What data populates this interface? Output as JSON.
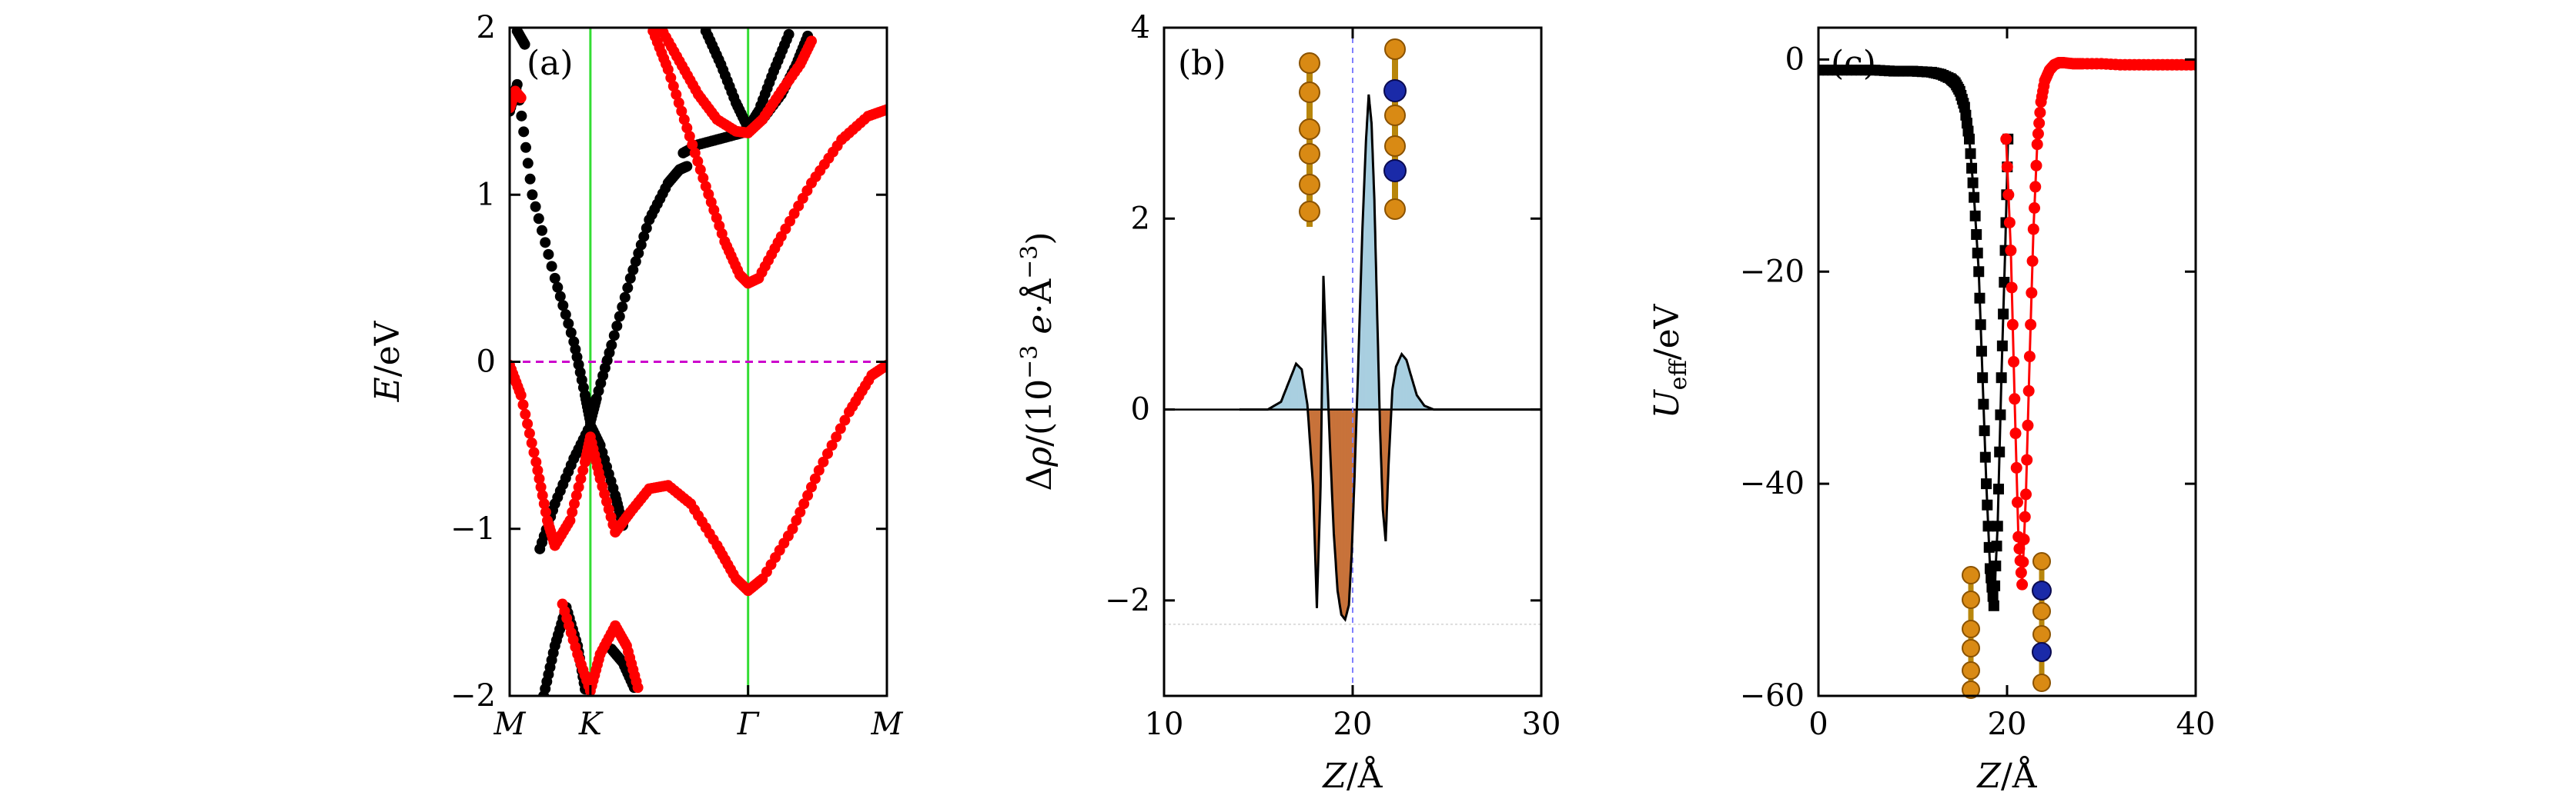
{
  "figure": "Three-panel band structure / charge difference / effective potential figure",
  "chart_data": [
    {
      "type": "scatter",
      "panel_label": "(a)",
      "xlabel": "",
      "ylabel": "E/eV",
      "ylabel_italic": "E",
      "ylabel_unit": "/eV",
      "xlim": [
        0,
        1
      ],
      "ylim": [
        -2,
        2
      ],
      "x_ticks": [
        {
          "pos": 0.0,
          "label": "M"
        },
        {
          "pos": 0.214,
          "label": "K"
        },
        {
          "pos": 0.632,
          "label": "Γ"
        },
        {
          "pos": 1.0,
          "label": "M"
        }
      ],
      "y_ticks": [
        -2,
        -1,
        0,
        1,
        2
      ],
      "y_tick_labels": [
        "−2",
        "−1",
        "0",
        "1",
        "2"
      ],
      "vlines_at": [
        0.214,
        0.632
      ],
      "fermi_level": 0,
      "colors": {
        "black_bands": "#000000",
        "red_bands": "#ff0000",
        "vline": "#33dd33",
        "fermi": "#cc00cc"
      },
      "series": [
        {
          "name": "black band 1",
          "color": "#000000",
          "points": [
            [
              0,
              1.5
            ],
            [
              0.02,
              1.66
            ],
            [
              0.06,
              1.0
            ],
            [
              0.12,
              0.5
            ],
            [
              0.17,
              0.12
            ],
            [
              0.2,
              -0.2
            ],
            [
              0.214,
              -0.36
            ],
            [
              0.23,
              -0.22
            ],
            [
              0.27,
              0.1
            ],
            [
              0.32,
              0.5
            ],
            [
              0.37,
              0.85
            ],
            [
              0.42,
              1.07
            ],
            [
              0.45,
              1.15
            ],
            [
              0.47,
              1.17
            ]
          ]
        },
        {
          "name": "black band 2",
          "color": "#000000",
          "points": [
            [
              0.46,
              1.25
            ],
            [
              0.5,
              1.3
            ],
            [
              0.55,
              1.33
            ],
            [
              0.6,
              1.36
            ],
            [
              0.632,
              1.38
            ],
            [
              0.67,
              1.45
            ],
            [
              0.72,
              1.6
            ],
            [
              0.76,
              1.78
            ],
            [
              0.79,
              1.95
            ]
          ]
        },
        {
          "name": "black band 3",
          "color": "#000000",
          "points": [
            [
              0.52,
              1.98
            ],
            [
              0.56,
              1.78
            ],
            [
              0.6,
              1.55
            ],
            [
              0.632,
              1.4
            ],
            [
              0.66,
              1.5
            ],
            [
              0.7,
              1.74
            ],
            [
              0.74,
              1.96
            ]
          ]
        },
        {
          "name": "black band 4",
          "color": "#000000",
          "points": [
            [
              0.08,
              -1.12
            ],
            [
              0.12,
              -0.85
            ],
            [
              0.17,
              -0.58
            ],
            [
              0.214,
              -0.38
            ],
            [
              0.24,
              -0.5
            ],
            [
              0.28,
              -0.8
            ],
            [
              0.3,
              -0.98
            ]
          ]
        },
        {
          "name": "black band 5",
          "color": "#000000",
          "points": [
            [
              0.09,
              -2.0
            ],
            [
              0.12,
              -1.7
            ],
            [
              0.15,
              -1.47
            ],
            [
              0.18,
              -1.7
            ],
            [
              0.2,
              -1.96
            ]
          ]
        },
        {
          "name": "black band 6",
          "color": "#000000",
          "points": [
            [
              0.27,
              -1.72
            ],
            [
              0.3,
              -1.8
            ],
            [
              0.33,
              -1.95
            ]
          ]
        },
        {
          "name": "black band 7",
          "color": "#000000",
          "points": [
            [
              0.02,
              1.98
            ],
            [
              0.04,
              1.9
            ]
          ]
        },
        {
          "name": "red conduction band",
          "color": "#ff0000",
          "points": [
            [
              0.38,
              1.98
            ],
            [
              0.42,
              1.75
            ],
            [
              0.47,
              1.4
            ],
            [
              0.52,
              1.05
            ],
            [
              0.57,
              0.72
            ],
            [
              0.61,
              0.52
            ],
            [
              0.632,
              0.47
            ],
            [
              0.66,
              0.5
            ],
            [
              0.72,
              0.75
            ],
            [
              0.8,
              1.07
            ],
            [
              0.88,
              1.33
            ],
            [
              0.95,
              1.47
            ],
            [
              1.0,
              1.51
            ]
          ]
        },
        {
          "name": "red band 2",
          "color": "#ff0000",
          "points": [
            [
              0.4,
              2.0
            ],
            [
              0.45,
              1.8
            ],
            [
              0.5,
              1.6
            ],
            [
              0.55,
              1.45
            ],
            [
              0.6,
              1.38
            ],
            [
              0.632,
              1.37
            ],
            [
              0.67,
              1.45
            ],
            [
              0.72,
              1.62
            ],
            [
              0.77,
              1.78
            ],
            [
              0.8,
              1.92
            ]
          ]
        },
        {
          "name": "red band 3",
          "color": "#ff0000",
          "points": [
            [
              0.0,
              1.52
            ],
            [
              0.015,
              1.62
            ],
            [
              0.03,
              1.58
            ]
          ]
        },
        {
          "name": "red valence band",
          "color": "#ff0000",
          "points": [
            [
              0.0,
              -0.02
            ],
            [
              0.03,
              -0.2
            ],
            [
              0.07,
              -0.6
            ],
            [
              0.1,
              -0.95
            ],
            [
              0.12,
              -1.1
            ],
            [
              0.16,
              -0.95
            ],
            [
              0.2,
              -0.6
            ],
            [
              0.214,
              -0.45
            ],
            [
              0.24,
              -0.7
            ],
            [
              0.28,
              -1.02
            ],
            [
              0.32,
              -0.9
            ],
            [
              0.37,
              -0.76
            ],
            [
              0.42,
              -0.74
            ],
            [
              0.48,
              -0.85
            ],
            [
              0.55,
              -1.1
            ],
            [
              0.6,
              -1.3
            ],
            [
              0.632,
              -1.37
            ],
            [
              0.67,
              -1.3
            ],
            [
              0.75,
              -1.0
            ],
            [
              0.82,
              -0.65
            ],
            [
              0.9,
              -0.3
            ],
            [
              0.96,
              -0.08
            ],
            [
              1.0,
              -0.02
            ]
          ]
        },
        {
          "name": "red band 5",
          "color": "#ff0000",
          "points": [
            [
              0.14,
              -1.45
            ],
            [
              0.18,
              -1.75
            ],
            [
              0.214,
              -1.97
            ],
            [
              0.24,
              -1.75
            ],
            [
              0.28,
              -1.58
            ],
            [
              0.31,
              -1.7
            ],
            [
              0.34,
              -1.95
            ]
          ]
        }
      ]
    },
    {
      "type": "area",
      "panel_label": "(b)",
      "xlabel": "Z/Å",
      "xlabel_italic": "Z",
      "xlabel_unit": "/Å",
      "ylabel": "Δρ/(10^−3 e·Å^−3)",
      "ylabel_parts": {
        "delta": "Δ",
        "rho": "ρ",
        "open": "/(10",
        "exp1": "−3",
        "e": " e",
        "dot": "·Å",
        "exp2": "−3",
        "close": ")"
      },
      "xlim": [
        10,
        30
      ],
      "ylim": [
        -3,
        4
      ],
      "x_ticks": [
        10,
        20,
        30
      ],
      "y_ticks": [
        -2,
        0,
        2,
        4
      ],
      "y_tick_labels": [
        "−2",
        "0",
        "2",
        "4"
      ],
      "colors": {
        "positive_fill": "#a9cfe0",
        "negative_fill": "#c8733b",
        "line": "#000000",
        "dashed_line": "#8080ff"
      },
      "dashed_vline_x": 20,
      "dotted_hline_y": -2.25,
      "x": [
        14.0,
        15.5,
        16.2,
        16.6,
        17.0,
        17.3,
        17.6,
        17.9,
        18.1,
        18.3,
        18.45,
        18.6,
        18.8,
        19.0,
        19.2,
        19.4,
        19.6,
        19.8,
        19.95,
        20.1,
        20.3,
        20.5,
        20.7,
        20.85,
        21.0,
        21.15,
        21.3,
        21.45,
        21.6,
        21.75,
        21.9,
        22.1,
        22.3,
        22.6,
        22.85,
        23.1,
        23.4,
        23.8,
        24.3,
        25.0,
        30.0
      ],
      "values": [
        0.0,
        0.0,
        0.08,
        0.28,
        0.48,
        0.42,
        0.05,
        -0.8,
        -2.08,
        -0.8,
        1.4,
        0.6,
        -0.4,
        -1.3,
        -1.9,
        -2.15,
        -2.2,
        -2.05,
        -1.5,
        -0.7,
        0.5,
        1.8,
        2.8,
        3.3,
        3.0,
        2.2,
        1.0,
        -0.2,
        -1.05,
        -1.38,
        -0.6,
        0.2,
        0.45,
        0.58,
        0.52,
        0.35,
        0.15,
        0.04,
        0.0,
        0.0,
        0.0
      ]
    },
    {
      "type": "line",
      "panel_label": "(c)",
      "xlabel": "Z/Å",
      "xlabel_italic": "Z",
      "xlabel_unit": "/Å",
      "ylabel": "U_eff/eV",
      "ylabel_parts": {
        "U": "U",
        "sub": "eff",
        "unit": "/eV"
      },
      "xlim": [
        0,
        40
      ],
      "ylim": [
        -60,
        3
      ],
      "x_ticks": [
        0,
        20,
        40
      ],
      "y_ticks": [
        -60,
        -40,
        -20,
        0
      ],
      "y_tick_labels": [
        "−60",
        "−40",
        "−20",
        "0"
      ],
      "series": [
        {
          "name": "black",
          "color": "#000000",
          "marker": "square",
          "x": [
            0,
            2,
            4,
            6,
            8,
            10,
            12,
            13,
            14,
            14.5,
            15,
            15.5,
            16,
            16.5,
            17,
            17.4,
            17.8,
            18.2,
            18.6,
            19.0,
            19.4,
            19.8,
            20.1
          ],
          "y": [
            -1.0,
            -1.0,
            -1.0,
            -1.0,
            -1.1,
            -1.1,
            -1.2,
            -1.4,
            -1.8,
            -2.2,
            -3.0,
            -4.5,
            -7.5,
            -13.0,
            -20.0,
            -30.0,
            -40.0,
            -48.0,
            -51.5,
            -44.0,
            -30.0,
            -18.0,
            -7.5
          ]
        },
        {
          "name": "red",
          "color": "#ff0000",
          "marker": "circle",
          "x": [
            19.9,
            20.4,
            20.8,
            21.2,
            21.6,
            22.0,
            22.4,
            22.8,
            23.2,
            23.6,
            24.0,
            24.5,
            25.0,
            25.5,
            26,
            27,
            28,
            30,
            32,
            34,
            36,
            38,
            40
          ],
          "y": [
            -7.5,
            -18.0,
            -32.0,
            -45.0,
            -49.5,
            -41.0,
            -28.0,
            -16.0,
            -8.0,
            -4.0,
            -2.0,
            -1.0,
            -0.5,
            -0.3,
            -0.3,
            -0.4,
            -0.4,
            -0.4,
            -0.5,
            -0.5,
            -0.5,
            -0.5,
            -0.5
          ]
        }
      ]
    }
  ]
}
